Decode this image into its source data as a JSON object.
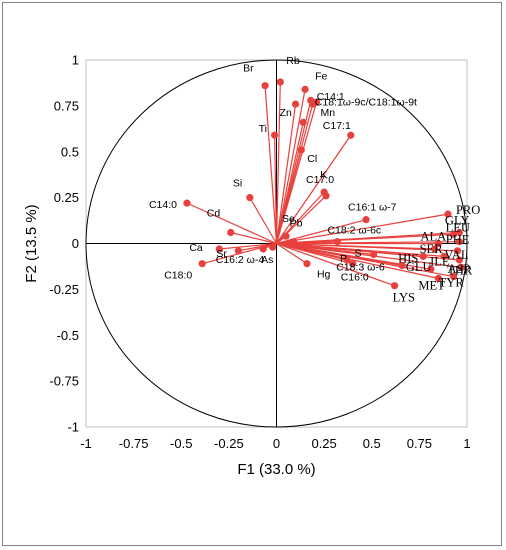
{
  "chart_data": {
    "type": "scatter",
    "subtype": "pca-correlation-circle",
    "xlabel": "F1 (33.0 %)",
    "ylabel": "F2 (13.5 %)",
    "xlim": [
      -1,
      1
    ],
    "ylim": [
      -1,
      1
    ],
    "xticks": [
      "-1",
      "-0.75",
      "-0.5",
      "-0.25",
      "0",
      "0.25",
      "0.5",
      "0.75",
      "1"
    ],
    "yticks": [
      "1",
      "0.75",
      "0.5",
      "0.25",
      "0",
      "-0.25",
      "-0.5",
      "-0.75",
      "-1"
    ],
    "grid": false,
    "unit_circle": true,
    "vector_color": "#e8403c",
    "points": [
      {
        "name": "Br",
        "x": -0.06,
        "y": 0.86
      },
      {
        "name": "Rb",
        "x": 0.02,
        "y": 0.88
      },
      {
        "name": "Fe",
        "x": 0.15,
        "y": 0.84
      },
      {
        "name": "Zn",
        "x": 0.1,
        "y": 0.76
      },
      {
        "name": "C18:1ω-9c/C18:1ω-9t",
        "x": 0.18,
        "y": 0.78
      },
      {
        "name": "C14:1",
        "x": 0.19,
        "y": 0.76
      },
      {
        "name": "Mn",
        "x": 0.21,
        "y": 0.77
      },
      {
        "name": "Ti",
        "x": -0.01,
        "y": 0.59
      },
      {
        "name": "C17:1",
        "x": 0.39,
        "y": 0.59
      },
      {
        "name": "Cl",
        "x": 0.13,
        "y": 0.51
      },
      {
        "name": "",
        "x": 0.14,
        "y": 0.66
      },
      {
        "name": "K",
        "x": 0.25,
        "y": 0.28
      },
      {
        "name": "C17:0",
        "x": 0.26,
        "y": 0.26
      },
      {
        "name": "C14:0",
        "x": -0.47,
        "y": 0.22
      },
      {
        "name": "Si",
        "x": -0.14,
        "y": 0.25
      },
      {
        "name": "Cd",
        "x": -0.24,
        "y": 0.06
      },
      {
        "name": "Ca",
        "x": -0.3,
        "y": -0.03
      },
      {
        "name": "Sr",
        "x": -0.2,
        "y": -0.04
      },
      {
        "name": "As",
        "x": -0.07,
        "y": -0.03
      },
      {
        "name": "C18:0",
        "x": -0.39,
        "y": -0.11
      },
      {
        "name": "C16:2 ω-4",
        "x": -0.02,
        "y": -0.02
      },
      {
        "name": "Se",
        "x": 0.05,
        "y": 0.04
      },
      {
        "name": "Pb",
        "x": 0.09,
        "y": 0.01
      },
      {
        "name": "C16:1 ω-7",
        "x": 0.47,
        "y": 0.13
      },
      {
        "name": "C18:2 ω-6c",
        "x": 0.32,
        "y": 0.01
      },
      {
        "name": "Hg",
        "x": 0.16,
        "y": -0.11
      },
      {
        "name": "P",
        "x": 0.37,
        "y": -0.09
      },
      {
        "name": "C16:0",
        "x": 0.4,
        "y": -0.11
      },
      {
        "name": "S",
        "x": 0.51,
        "y": -0.06
      },
      {
        "name": "C18:3 ω-6",
        "x": 0.66,
        "y": -0.12
      },
      {
        "name": "LYS",
        "x": 0.62,
        "y": -0.23
      },
      {
        "name": "PRO",
        "x": 0.9,
        "y": 0.16
      },
      {
        "name": "LEU",
        "x": 0.93,
        "y": 0.05
      },
      {
        "name": "GLY",
        "x": 0.96,
        "y": 0.06
      },
      {
        "name": "ALA",
        "x": 0.85,
        "y": 0.0
      },
      {
        "name": "PHE",
        "x": 0.96,
        "y": 0.01
      },
      {
        "name": "SER",
        "x": 0.83,
        "y": -0.03
      },
      {
        "name": "VAL",
        "x": 0.95,
        "y": -0.04
      },
      {
        "name": "HIS",
        "x": 0.77,
        "y": -0.07
      },
      {
        "name": "ILE",
        "x": 0.88,
        "y": -0.07
      },
      {
        "name": "ASP",
        "x": 0.96,
        "y": -0.09
      },
      {
        "name": "GLU",
        "x": 0.81,
        "y": -0.14
      },
      {
        "name": "THR",
        "x": 0.97,
        "y": -0.13
      },
      {
        "name": "MET",
        "x": 0.85,
        "y": -0.19
      },
      {
        "name": "TYR",
        "x": 0.93,
        "y": -0.18
      }
    ]
  }
}
